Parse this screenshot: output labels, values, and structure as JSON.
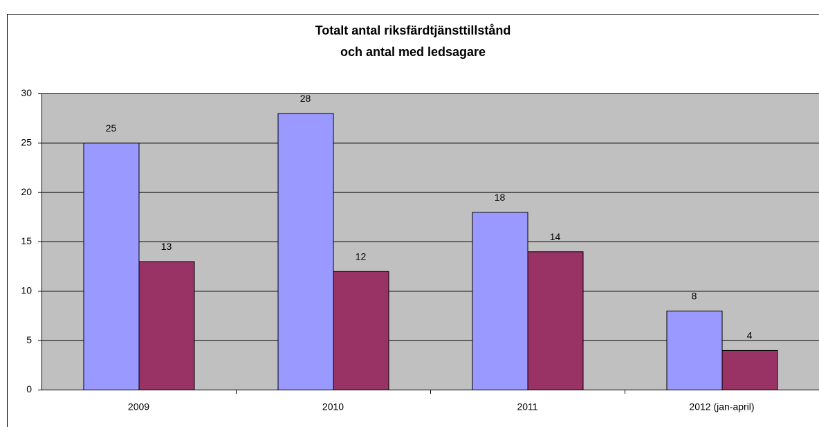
{
  "chart_data": {
    "type": "bar",
    "title": [
      "Totalt antal riksfärdtjänsttillstånd",
      "och antal med ledsagare"
    ],
    "categories": [
      "2009",
      "2010",
      "2011",
      "2012 (jan-april)"
    ],
    "series": [
      {
        "color": "#9999ff",
        "values": [
          25,
          28,
          18,
          8
        ]
      },
      {
        "color": "#993366",
        "values": [
          13,
          12,
          14,
          4
        ]
      }
    ],
    "ylim": [
      0,
      30
    ],
    "yticks": [
      0,
      5,
      10,
      15,
      20,
      25,
      30
    ],
    "grid": true
  }
}
